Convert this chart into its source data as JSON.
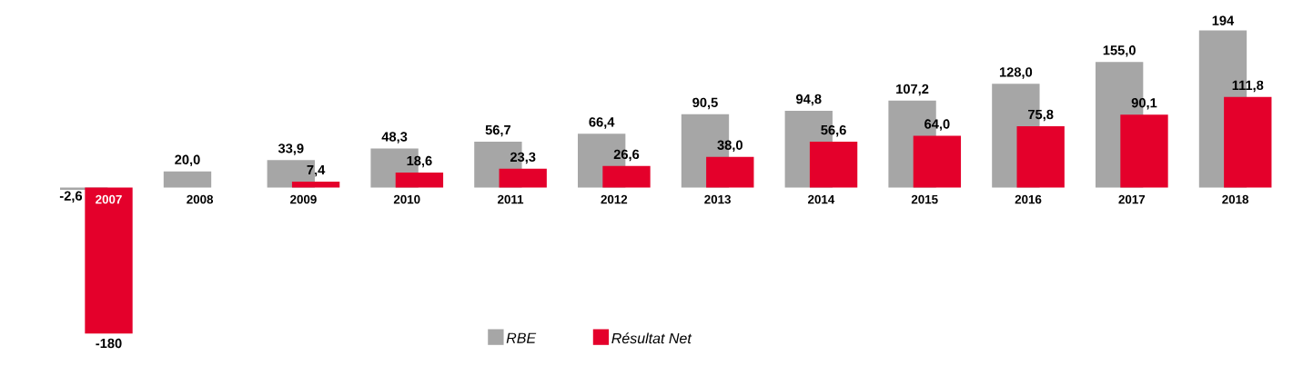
{
  "chart_data": {
    "type": "bar",
    "categories": [
      "2007",
      "2008",
      "2009",
      "2010",
      "2011",
      "2012",
      "2013",
      "2014",
      "2015",
      "2016",
      "2017",
      "2018"
    ],
    "series": [
      {
        "name": "RBE",
        "color": "#a6a6a6",
        "values": [
          -2.6,
          20.0,
          33.9,
          48.3,
          56.7,
          66.4,
          90.5,
          94.8,
          107.2,
          128.0,
          155.0,
          194
        ],
        "value_labels": [
          "-2,6",
          "20,0",
          "33,9",
          "48,3",
          "56,7",
          "66,4",
          "90,5",
          "94,8",
          "107,2",
          "128,0",
          "155,0",
          "194"
        ]
      },
      {
        "name": "Résultat Net",
        "color": "#e4002b",
        "values": [
          -180,
          null,
          7.4,
          18.6,
          23.3,
          26.6,
          38.0,
          56.6,
          64.0,
          75.8,
          90.1,
          111.8
        ],
        "value_labels": [
          "-180",
          null,
          "7,4",
          "18,6",
          "23,3",
          "26,6",
          "38,0",
          "56,6",
          "64,0",
          "75,8",
          "90,1",
          "111,8"
        ]
      }
    ],
    "legend": "bottom"
  }
}
